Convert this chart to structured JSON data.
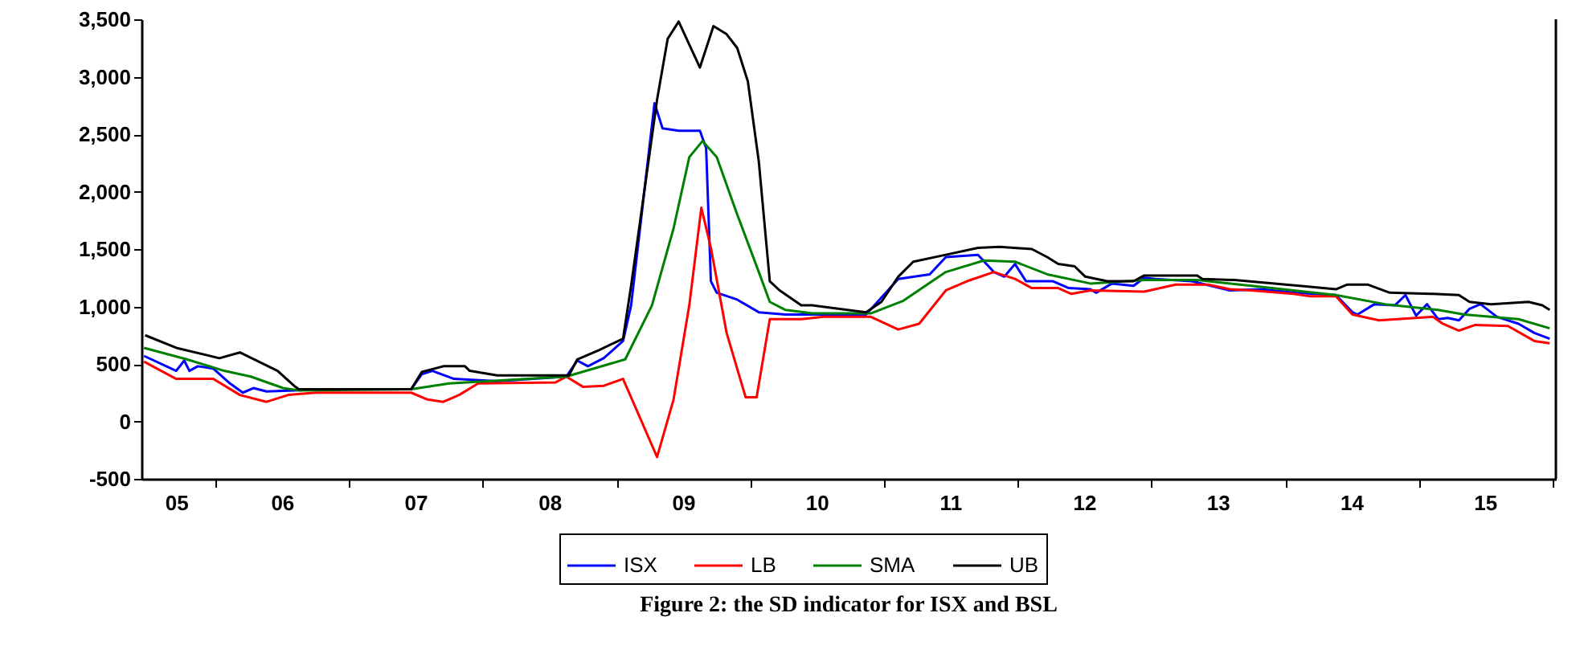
{
  "chart_data": {
    "type": "line",
    "annotations": [
      "Figure 2: the SD indicator for ISX and BSL"
    ],
    "xlim": [
      "2005-06-12",
      "2016-01-11"
    ],
    "xticks": [
      {
        "value": "2005-09-15",
        "label": "05"
      },
      {
        "value": "2006-01-01",
        "label": null
      },
      {
        "value": "2006-07-01",
        "label": "06"
      },
      {
        "value": "2007-01-01",
        "label": null
      },
      {
        "value": "2007-07-01",
        "label": "07"
      },
      {
        "value": "2008-01-01",
        "label": null
      },
      {
        "value": "2008-07-01",
        "label": "08"
      },
      {
        "value": "2009-01-01",
        "label": null
      },
      {
        "value": "2009-07-01",
        "label": "09"
      },
      {
        "value": "2010-01-01",
        "label": null
      },
      {
        "value": "2010-07-01",
        "label": "10"
      },
      {
        "value": "2011-01-01",
        "label": null
      },
      {
        "value": "2011-07-01",
        "label": "11"
      },
      {
        "value": "2012-01-01",
        "label": null
      },
      {
        "value": "2012-07-01",
        "label": "12"
      },
      {
        "value": "2013-01-01",
        "label": null
      },
      {
        "value": "2013-07-01",
        "label": "13"
      },
      {
        "value": "2014-01-01",
        "label": null
      },
      {
        "value": "2014-07-01",
        "label": "14"
      },
      {
        "value": "2015-01-01",
        "label": null
      },
      {
        "value": "2015-07-01",
        "label": "15"
      },
      {
        "value": "2016-01-01",
        "label": null
      }
    ],
    "ylim": [
      -500,
      3500
    ],
    "yticks": [
      {
        "value": -500,
        "label": "-500"
      },
      0,
      500,
      {
        "value": 1000,
        "label": "1,000"
      },
      {
        "value": 1500,
        "label": "1,500"
      },
      {
        "value": 2000,
        "label": "2,000"
      },
      {
        "value": 2500,
        "label": "2,500"
      },
      {
        "value": 3000,
        "label": "3,000"
      },
      {
        "value": 3500,
        "label": "3,500"
      }
    ],
    "grid": false,
    "legend": "bottom",
    "series": [
      {
        "name": "ISX",
        "color": "#0000ff",
        "x": [
          "2005-06-19",
          "2005-09-15",
          "2005-10-07",
          "2005-10-21",
          "2005-11-13",
          "2005-12-25",
          "2006-02-09",
          "2006-03-16",
          "2006-04-14",
          "2006-05-20",
          "2006-08-03",
          "2006-10-14",
          "2007-06-19",
          "2007-07-18",
          "2007-08-16",
          "2007-10-14",
          "2008-02-09",
          "2008-08-16",
          "2008-09-15",
          "2008-10-14",
          "2008-11-26",
          "2009-01-18",
          "2009-02-09",
          "2009-04-14",
          "2009-05-06",
          "2009-06-19",
          "2009-08-16",
          "2009-09-02",
          "2009-09-15",
          "2009-10-01",
          "2009-11-26",
          "2010-01-24",
          "2010-04-07",
          "2010-06-19",
          "2010-11-13",
          "2011-02-09",
          "2011-05-06",
          "2011-06-19",
          "2011-09-15",
          "2011-10-28",
          "2011-11-26",
          "2011-12-25",
          "2012-01-24",
          "2012-04-07",
          "2012-05-20",
          "2012-07-18",
          "2012-08-03",
          "2012-09-15",
          "2012-11-13",
          "2012-12-12",
          "2013-01-11",
          "2013-04-21",
          "2013-08-03",
          "2013-10-28",
          "2014-01-24",
          "2014-05-20",
          "2014-07-04",
          "2014-07-18",
          "2014-09-02",
          "2014-10-28",
          "2014-11-26",
          "2014-12-25",
          "2015-01-24",
          "2015-02-23",
          "2015-03-22",
          "2015-04-21",
          "2015-05-20",
          "2015-06-19",
          "2015-08-03",
          "2015-10-01",
          "2015-11-13",
          "2015-12-25"
        ],
        "values": [
          570,
          440,
          530,
          440,
          480,
          460,
          330,
          250,
          290,
          260,
          270,
          280,
          280,
          410,
          440,
          370,
          350,
          390,
          530,
          480,
          550,
          700,
          1010,
          2770,
          2550,
          2530,
          2530,
          2380,
          1220,
          1120,
          1060,
          950,
          930,
          930,
          930,
          1240,
          1280,
          1430,
          1450,
          1300,
          1260,
          1370,
          1220,
          1220,
          1160,
          1150,
          1120,
          1200,
          1180,
          1250,
          1240,
          1220,
          1140,
          1150,
          1120,
          1100,
          950,
          930,
          1020,
          1010,
          1100,
          920,
          1020,
          890,
          900,
          880,
          980,
          1020,
          910,
          850,
          770,
          720
        ]
      },
      {
        "name": "LB",
        "color": "#ff0000",
        "x": [
          "2005-06-19",
          "2005-09-15",
          "2005-12-25",
          "2006-03-08",
          "2006-05-20",
          "2006-07-18",
          "2006-10-01",
          "2007-06-19",
          "2007-08-03",
          "2007-09-15",
          "2007-10-28",
          "2007-12-19",
          "2008-07-18",
          "2008-08-16",
          "2008-10-01",
          "2008-11-26",
          "2009-01-18",
          "2009-04-21",
          "2009-06-05",
          "2009-07-18",
          "2009-08-20",
          "2009-09-15",
          "2009-10-28",
          "2009-12-19",
          "2010-01-18",
          "2010-02-23",
          "2010-05-20",
          "2010-07-18",
          "2010-11-26",
          "2011-02-09",
          "2011-04-07",
          "2011-06-19",
          "2011-08-16",
          "2011-10-28",
          "2011-12-25",
          "2012-02-09",
          "2012-04-21",
          "2012-05-27",
          "2012-07-18",
          "2012-12-12",
          "2013-03-08",
          "2013-06-05",
          "2013-08-03",
          "2013-10-01",
          "2014-01-24",
          "2014-03-08",
          "2014-05-20",
          "2014-07-04",
          "2014-09-15",
          "2015-02-09",
          "2015-03-08",
          "2015-04-21",
          "2015-06-05",
          "2015-09-02",
          "2015-11-13",
          "2015-12-25"
        ],
        "values": [
          520,
          370,
          370,
          230,
          170,
          230,
          250,
          250,
          190,
          170,
          230,
          330,
          340,
          390,
          300,
          310,
          370,
          -310,
          190,
          1010,
          1860,
          1510,
          770,
          210,
          210,
          890,
          890,
          910,
          910,
          800,
          850,
          1140,
          1220,
          1300,
          1240,
          1160,
          1160,
          1110,
          1140,
          1130,
          1190,
          1190,
          1150,
          1140,
          1110,
          1090,
          1090,
          930,
          880,
          910,
          850,
          790,
          840,
          830,
          700,
          680
        ]
      },
      {
        "name": "SMA",
        "color": "#008000",
        "x": [
          "2005-06-19",
          "2005-10-14",
          "2006-01-24",
          "2006-04-07",
          "2006-07-04",
          "2006-08-16",
          "2007-06-19",
          "2007-10-01",
          "2008-08-16",
          "2009-01-24",
          "2009-04-07",
          "2009-06-05",
          "2009-07-18",
          "2009-08-23",
          "2009-10-01",
          "2009-11-26",
          "2010-01-24",
          "2010-02-23",
          "2010-04-07",
          "2010-06-19",
          "2010-11-26",
          "2011-02-23",
          "2011-06-19",
          "2011-10-01",
          "2011-12-25",
          "2012-03-22",
          "2012-07-18",
          "2012-12-12",
          "2013-05-06",
          "2013-10-01",
          "2014-05-20",
          "2014-10-01",
          "2015-02-23",
          "2015-05-06",
          "2015-10-01",
          "2015-12-25"
        ],
        "values": [
          640,
          540,
          440,
          390,
          290,
          270,
          280,
          330,
          390,
          540,
          1010,
          1680,
          2300,
          2440,
          2300,
          1800,
          1300,
          1040,
          970,
          940,
          940,
          1050,
          1300,
          1400,
          1390,
          1280,
          1200,
          1230,
          1230,
          1180,
          1100,
          1020,
          970,
          930,
          890,
          810
        ]
      },
      {
        "name": "UB",
        "color": "#000000",
        "x": [
          "2005-06-22",
          "2005-09-15",
          "2006-01-11",
          "2006-03-08",
          "2006-06-19",
          "2006-08-03",
          "2006-08-16",
          "2007-06-19",
          "2007-07-18",
          "2007-09-15",
          "2007-11-13",
          "2007-11-26",
          "2008-02-09",
          "2008-08-23",
          "2008-09-15",
          "2008-11-13",
          "2009-01-18",
          "2009-02-09",
          "2009-04-21",
          "2009-05-20",
          "2009-06-19",
          "2009-08-16",
          "2009-09-22",
          "2009-10-28",
          "2009-11-26",
          "2009-12-25",
          "2010-01-24",
          "2010-02-23",
          "2010-03-22",
          "2010-05-20",
          "2010-06-19",
          "2010-11-13",
          "2010-12-25",
          "2011-02-09",
          "2011-03-22",
          "2011-06-19",
          "2011-09-15",
          "2011-11-13",
          "2012-02-09",
          "2012-03-22",
          "2012-04-21",
          "2012-06-05",
          "2012-07-04",
          "2012-09-02",
          "2012-11-13",
          "2012-12-12",
          "2013-05-06",
          "2013-05-20",
          "2013-08-16",
          "2014-02-09",
          "2014-05-20",
          "2014-06-19",
          "2014-08-16",
          "2014-10-14",
          "2015-02-09",
          "2015-04-21",
          "2015-05-20",
          "2015-07-18",
          "2015-10-28",
          "2015-12-05",
          "2015-12-25"
        ],
        "values": [
          750,
          640,
          550,
          600,
          440,
          310,
          280,
          280,
          430,
          480,
          480,
          440,
          400,
          400,
          540,
          620,
          720,
          1180,
          2800,
          3330,
          3480,
          3080,
          3440,
          3370,
          3250,
          2960,
          2260,
          1220,
          1140,
          1010,
          1010,
          950,
          1040,
          1260,
          1390,
          1450,
          1510,
          1520,
          1500,
          1430,
          1370,
          1350,
          1260,
          1220,
          1220,
          1270,
          1270,
          1240,
          1230,
          1180,
          1150,
          1190,
          1190,
          1120,
          1110,
          1100,
          1040,
          1020,
          1040,
          1010,
          970
        ]
      }
    ]
  }
}
